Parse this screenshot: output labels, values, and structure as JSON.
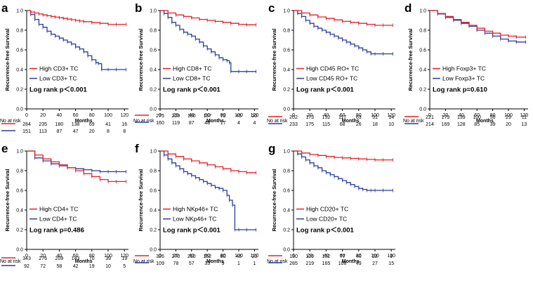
{
  "colors": {
    "high": "#e8202a",
    "low": "#2a3c9c",
    "axis": "#000000"
  },
  "shared": {
    "ylabel": "Recurrence-free Survival",
    "xlabel": "Months",
    "risk_label": "No at risk",
    "yticks": [
      "0.0",
      "0.2",
      "0.4",
      "0.6",
      "0.8",
      "1.0"
    ],
    "xticks": [
      "0",
      "20",
      "40",
      "60",
      "80",
      "100",
      "120"
    ]
  },
  "chart_data": [
    {
      "panel": "a",
      "type": "line",
      "title": "",
      "xlim": [
        0,
        125
      ],
      "ylim": [
        0,
        1
      ],
      "series": [
        {
          "name": "High CD3+ TC",
          "x": [
            0,
            5,
            10,
            15,
            20,
            25,
            30,
            35,
            40,
            45,
            50,
            55,
            60,
            65,
            70,
            80,
            90,
            100,
            110,
            122
          ],
          "y": [
            1.0,
            0.985,
            0.975,
            0.965,
            0.955,
            0.947,
            0.94,
            0.933,
            0.927,
            0.92,
            0.913,
            0.907,
            0.9,
            0.893,
            0.887,
            0.877,
            0.87,
            0.86,
            0.86,
            0.86
          ]
        },
        {
          "name": "Low CD3+ TC",
          "x": [
            0,
            5,
            10,
            15,
            20,
            25,
            30,
            35,
            40,
            45,
            50,
            55,
            60,
            65,
            70,
            75,
            80,
            85,
            88,
            92,
            100,
            110,
            122
          ],
          "y": [
            1.0,
            0.96,
            0.91,
            0.86,
            0.83,
            0.79,
            0.76,
            0.74,
            0.72,
            0.7,
            0.68,
            0.66,
            0.63,
            0.61,
            0.58,
            0.54,
            0.5,
            0.47,
            0.46,
            0.4,
            0.4,
            0.4,
            0.4
          ]
        }
      ],
      "stat": "Log rank p＜0.001",
      "risk": {
        "months": [
          0,
          20,
          40,
          60,
          80,
          100,
          120
        ],
        "high": [
          "284",
          "235",
          "180",
          "138",
          "69",
          "41",
          "16"
        ],
        "low": [
          "151",
          "113",
          "87",
          "47",
          "20",
          "8",
          "8"
        ]
      }
    },
    {
      "panel": "b",
      "type": "line",
      "title": "",
      "xlim": [
        0,
        125
      ],
      "ylim": [
        0,
        1
      ],
      "series": [
        {
          "name": "High CD8+ TC",
          "x": [
            0,
            10,
            20,
            30,
            40,
            50,
            60,
            70,
            80,
            90,
            100,
            110,
            122
          ],
          "y": [
            1.0,
            0.975,
            0.955,
            0.94,
            0.925,
            0.91,
            0.9,
            0.89,
            0.88,
            0.87,
            0.86,
            0.855,
            0.855
          ]
        },
        {
          "name": "Low CD8+ TC",
          "x": [
            0,
            5,
            10,
            15,
            20,
            25,
            30,
            35,
            40,
            45,
            50,
            55,
            60,
            65,
            70,
            75,
            80,
            85,
            88,
            90,
            100,
            110,
            122
          ],
          "y": [
            1.0,
            0.97,
            0.93,
            0.88,
            0.85,
            0.81,
            0.78,
            0.76,
            0.74,
            0.71,
            0.68,
            0.64,
            0.61,
            0.58,
            0.55,
            0.52,
            0.5,
            0.49,
            0.47,
            0.38,
            0.38,
            0.38,
            0.38
          ]
        }
      ],
      "stat": "Log rank p＜0.001",
      "risk": {
        "months": [
          0,
          20,
          40,
          60,
          80,
          100,
          120
        ],
        "high": [
          "275",
          "229",
          "180",
          "137",
          "72",
          "45",
          "20"
        ],
        "low": [
          "160",
          "119",
          "87",
          "48",
          "17",
          "4",
          "4"
        ]
      }
    },
    {
      "panel": "c",
      "type": "line",
      "title": "",
      "xlim": [
        0,
        125
      ],
      "ylim": [
        0,
        1
      ],
      "series": [
        {
          "name": "High CD45 RO+ TC",
          "x": [
            0,
            10,
            20,
            30,
            40,
            50,
            60,
            70,
            80,
            90,
            100,
            110,
            122
          ],
          "y": [
            1.0,
            0.975,
            0.955,
            0.935,
            0.92,
            0.905,
            0.89,
            0.88,
            0.87,
            0.86,
            0.85,
            0.85,
            0.85
          ]
        },
        {
          "name": "Low CD45 RO+ TC",
          "x": [
            0,
            5,
            10,
            15,
            20,
            25,
            30,
            35,
            40,
            45,
            50,
            55,
            60,
            65,
            70,
            75,
            80,
            85,
            90,
            95,
            100,
            110,
            122
          ],
          "y": [
            1.0,
            0.97,
            0.94,
            0.9,
            0.87,
            0.84,
            0.82,
            0.8,
            0.78,
            0.76,
            0.74,
            0.72,
            0.7,
            0.68,
            0.66,
            0.64,
            0.62,
            0.6,
            0.58,
            0.56,
            0.56,
            0.56,
            0.56
          ]
        }
      ],
      "stat": "Log rank p＜0.001",
      "risk": {
        "months": [
          0,
          20,
          40,
          60,
          80,
          100,
          120
        ],
        "high": [
          "202",
          "173",
          "152",
          "117",
          "63",
          "31",
          "14"
        ],
        "low": [
          "233",
          "175",
          "115",
          "68",
          "26",
          "18",
          "10"
        ]
      }
    },
    {
      "panel": "d",
      "type": "line",
      "title": "",
      "xlim": [
        0,
        125
      ],
      "ylim": [
        0,
        1
      ],
      "series": [
        {
          "name": "High Foxp3+ TC",
          "x": [
            0,
            10,
            20,
            30,
            40,
            50,
            60,
            70,
            80,
            90,
            100,
            110,
            122
          ],
          "y": [
            1.0,
            0.97,
            0.94,
            0.91,
            0.88,
            0.85,
            0.82,
            0.79,
            0.77,
            0.75,
            0.74,
            0.73,
            0.73
          ]
        },
        {
          "name": "Low Foxp3+ TC",
          "x": [
            0,
            10,
            20,
            30,
            40,
            50,
            60,
            70,
            80,
            90,
            100,
            110,
            122
          ],
          "y": [
            1.0,
            0.965,
            0.93,
            0.9,
            0.87,
            0.84,
            0.8,
            0.77,
            0.74,
            0.71,
            0.69,
            0.68,
            0.68
          ]
        }
      ],
      "stat": "Log rank p=0.610",
      "risk": {
        "months": [
          0,
          20,
          40,
          60,
          80,
          100,
          120
        ],
        "high": [
          "221",
          "179",
          "139",
          "100",
          "50",
          "29",
          "11"
        ],
        "low": [
          "214",
          "169",
          "128",
          "85",
          "39",
          "20",
          "13"
        ]
      }
    },
    {
      "panel": "e",
      "type": "line",
      "title": "",
      "xlim": [
        0,
        125
      ],
      "ylim": [
        0,
        1
      ],
      "series": [
        {
          "name": "High CD4+ TC",
          "x": [
            0,
            10,
            20,
            30,
            40,
            50,
            60,
            70,
            80,
            90,
            100,
            110,
            122
          ],
          "y": [
            1.0,
            0.96,
            0.92,
            0.89,
            0.86,
            0.83,
            0.8,
            0.77,
            0.74,
            0.71,
            0.69,
            0.69,
            0.69
          ]
        },
        {
          "name": "Low CD4+ TC",
          "x": [
            0,
            10,
            20,
            30,
            40,
            50,
            60,
            70,
            80,
            90,
            100,
            110,
            122
          ],
          "y": [
            1.0,
            0.93,
            0.9,
            0.87,
            0.85,
            0.83,
            0.82,
            0.81,
            0.8,
            0.79,
            0.79,
            0.79,
            0.79
          ]
        }
      ],
      "stat": "Log rank p=0.486",
      "risk": {
        "months": [
          0,
          20,
          40,
          60,
          80,
          100,
          120
        ],
        "high": [
          "343",
          "276",
          "209",
          "143",
          "70",
          "39",
          "19"
        ],
        "low": [
          "92",
          "72",
          "58",
          "42",
          "19",
          "10",
          "5"
        ]
      }
    },
    {
      "panel": "f",
      "type": "line",
      "title": "",
      "xlim": [
        0,
        125
      ],
      "ylim": [
        0,
        1
      ],
      "series": [
        {
          "name": "High NKp46+ TC",
          "x": [
            0,
            10,
            20,
            30,
            40,
            50,
            60,
            70,
            80,
            90,
            100,
            110,
            122
          ],
          "y": [
            1.0,
            0.97,
            0.945,
            0.92,
            0.9,
            0.88,
            0.86,
            0.84,
            0.82,
            0.8,
            0.79,
            0.78,
            0.78
          ]
        },
        {
          "name": "Low NKp46+ TC",
          "x": [
            0,
            5,
            10,
            15,
            20,
            25,
            30,
            35,
            40,
            45,
            50,
            55,
            60,
            65,
            70,
            75,
            80,
            85,
            88,
            92,
            95,
            100,
            110,
            122
          ],
          "y": [
            1.0,
            0.96,
            0.92,
            0.88,
            0.85,
            0.82,
            0.79,
            0.77,
            0.75,
            0.73,
            0.71,
            0.69,
            0.67,
            0.65,
            0.63,
            0.62,
            0.6,
            0.55,
            0.5,
            0.45,
            0.2,
            0.2,
            0.2,
            0.2
          ]
        }
      ],
      "stat": "Log rank p＜0.001",
      "risk": {
        "months": [
          0,
          20,
          40,
          60,
          80,
          100,
          120
        ],
        "high": [
          "326",
          "270",
          "210",
          "152",
          "80",
          "48",
          "23"
        ],
        "low": [
          "109",
          "78",
          "57",
          "33",
          "9",
          "1",
          "1"
        ]
      }
    },
    {
      "panel": "g",
      "type": "line",
      "title": "",
      "xlim": [
        0,
        125
      ],
      "ylim": [
        0,
        1
      ],
      "series": [
        {
          "name": "High CD20+ TC",
          "x": [
            0,
            10,
            20,
            30,
            40,
            50,
            60,
            70,
            80,
            90,
            100,
            110,
            122
          ],
          "y": [
            1.0,
            0.98,
            0.965,
            0.955,
            0.945,
            0.935,
            0.93,
            0.925,
            0.92,
            0.915,
            0.91,
            0.91,
            0.91
          ]
        },
        {
          "name": "Low CD20+ TC",
          "x": [
            0,
            5,
            10,
            15,
            20,
            25,
            30,
            35,
            40,
            45,
            50,
            55,
            60,
            65,
            70,
            75,
            80,
            85,
            90,
            95,
            100,
            110,
            122
          ],
          "y": [
            1.0,
            0.97,
            0.94,
            0.91,
            0.88,
            0.85,
            0.83,
            0.8,
            0.78,
            0.76,
            0.74,
            0.72,
            0.7,
            0.68,
            0.66,
            0.64,
            0.62,
            0.61,
            0.6,
            0.6,
            0.6,
            0.6,
            0.6
          ]
        }
      ],
      "stat": "Log rank p＜0.001",
      "risk": {
        "months": [
          0,
          20,
          40,
          60,
          80,
          100,
          120
        ],
        "high": [
          "150",
          "129",
          "102",
          "77",
          "40",
          "22",
          "9"
        ],
        "low": [
          "285",
          "219",
          "165",
          "108",
          "49",
          "27",
          "15"
        ]
      }
    }
  ]
}
